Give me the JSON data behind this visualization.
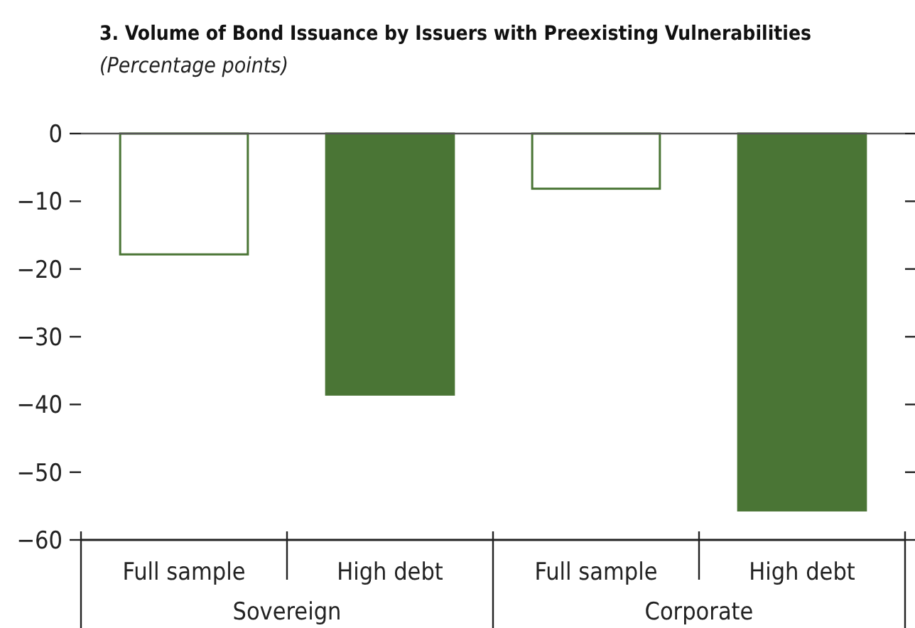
{
  "chart_data": {
    "type": "bar",
    "title": "3. Volume of Bond Issuance by Issuers with Preexisting Vulnerabilities",
    "subtitle": "(Percentage points)",
    "categories": [
      "Full sample",
      "High debt",
      "Full sample",
      "High debt"
    ],
    "values": [
      -18,
      -38.7,
      -8.3,
      -55.8
    ],
    "color": "#4a7535",
    "colors": [
      "#ffffff",
      "#4a7535",
      "#ffffff",
      "#4a7535"
    ],
    "annotations": [
      "Sovereign",
      "Corporate"
    ],
    "ylim": [
      -60,
      0
    ],
    "yticks": [
      {
        "value": 0,
        "label": "0"
      },
      {
        "value": -10,
        "label": "−10"
      },
      {
        "value": -20,
        "label": "−20"
      },
      {
        "value": -30,
        "label": "−30"
      },
      {
        "value": -40,
        "label": "−40"
      },
      {
        "value": -50,
        "label": "−50"
      },
      {
        "value": -60,
        "label": "−60"
      }
    ]
  }
}
